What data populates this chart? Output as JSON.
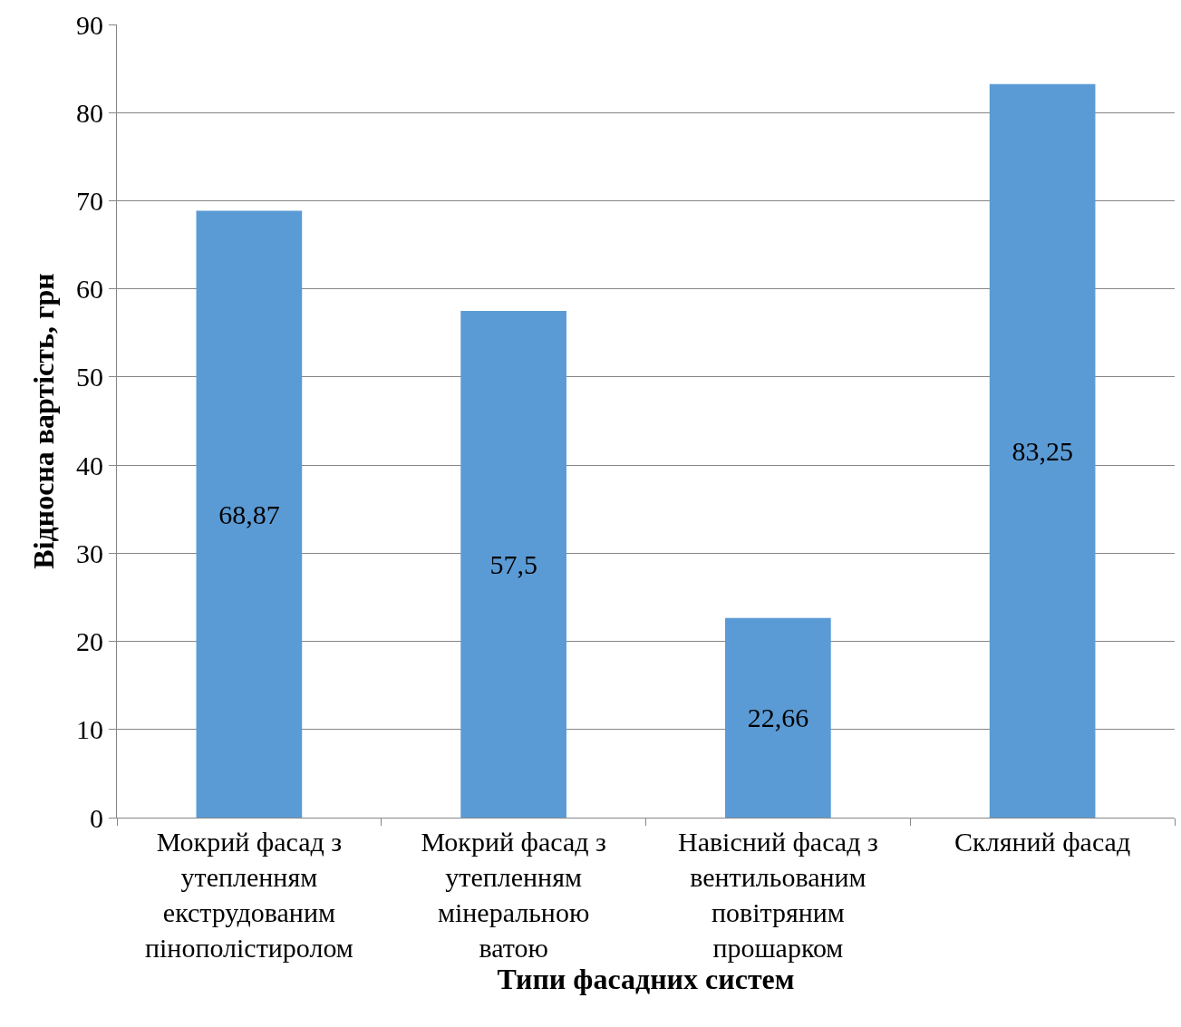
{
  "chart_data": {
    "type": "bar",
    "xlabel": "Типи фасадних систем",
    "ylabel": "Відносна вартість, грн",
    "categories": [
      "Мокрий фасад з утепленням екструдованим пінополістиролом",
      "Мокрий фасад з утепленням мінеральною ватою",
      "Навісний фасад з вентильованим повітряним прошарком",
      "Скляний фасад"
    ],
    "values": [
      68.87,
      57.5,
      22.66,
      83.25
    ],
    "value_labels": [
      "68,87",
      "57,5",
      "22,66",
      "83,25"
    ],
    "color": "#5b9bd5",
    "ylim": [
      0,
      90
    ],
    "yticks": [
      0,
      10,
      20,
      30,
      40,
      50,
      60,
      70,
      80,
      90
    ],
    "grid": "y"
  }
}
